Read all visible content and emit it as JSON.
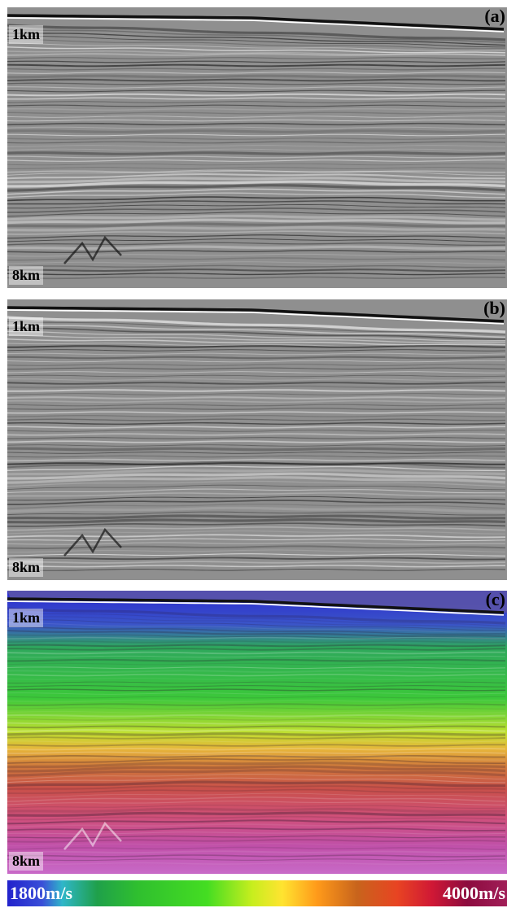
{
  "panels": [
    {
      "letter": "(a)",
      "depth_top": "1km",
      "depth_bottom": "8km",
      "type": "seismic-image"
    },
    {
      "letter": "(b)",
      "depth_top": "1km",
      "depth_bottom": "8km",
      "type": "seismic-image"
    },
    {
      "letter": "(c)",
      "depth_top": "1km",
      "depth_bottom": "8km",
      "type": "velocity-overlay"
    }
  ],
  "colorbar": {
    "min_label": "1800m/s",
    "max_label": "4000m/s"
  },
  "colors": {
    "velocity_low": "#2222cc",
    "velocity_mid": "#44dd22",
    "velocity_high": "#a11e58",
    "seismic_background": "#8f8f8f"
  }
}
